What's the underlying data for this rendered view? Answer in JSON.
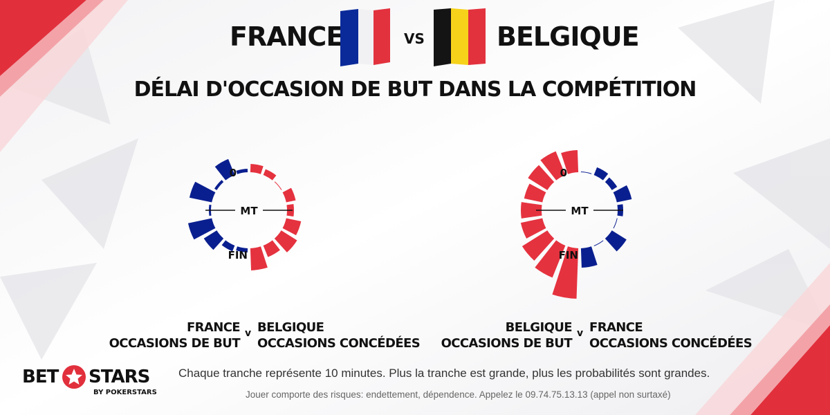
{
  "header": {
    "team_left": "FRANCE",
    "vs": "VS",
    "team_right": "BELGIQUE",
    "title": "DÉLAI D'OCCASION DE BUT DANS LA COMPÉTITION"
  },
  "colors": {
    "red": "#e5323f",
    "blue": "#0a1f8f",
    "flag_black": "#111111",
    "flag_yellow": "#f6d21b"
  },
  "radial_labels": {
    "start": "0",
    "half": "MT",
    "end": "FIN"
  },
  "captions": {
    "left": {
      "team_a": "FRANCE",
      "line_a": "OCCASIONS DE BUT",
      "v": "v",
      "team_b": "BELGIQUE",
      "line_b": "OCCASIONS CONCÉDÉES"
    },
    "right": {
      "team_a": "BELGIQUE",
      "line_a": "OCCASIONS DE BUT",
      "v": "v",
      "team_b": "FRANCE",
      "line_b": "OCCASIONS CONCÉDÉES"
    }
  },
  "footer": {
    "note": "Chaque tranche représente 10 minutes. Plus la tranche est grande, plus les probabilités sont grandes.",
    "disclaimer": "Jouer comporte des risques: endettement, dépendence. Appelez le 09.74.75.13.13 (appel non surtaxé)"
  },
  "logo": {
    "bet": "BET",
    "stars": "STARS",
    "sub": "BY POKERSTARS"
  },
  "chart_data": [
    {
      "type": "radial-bar",
      "segments": [
        "0-10",
        "10-20",
        "20-30",
        "30-40",
        "40-50",
        "50-60",
        "60-70",
        "70-80",
        "80-90"
      ],
      "series": [
        {
          "name": "FRANCE OCCASIONS DE BUT",
          "values": [
            5,
            25,
            4,
            33,
            3,
            35,
            22,
            9,
            6
          ]
        },
        {
          "name": "BELGIQUE OCCASIONS CONCÉDÉES",
          "values": [
            12,
            9,
            1,
            14,
            10,
            22,
            27,
            18,
            32
          ]
        }
      ]
    },
    {
      "type": "radial-bar",
      "segments": [
        "0-10",
        "10-20",
        "20-30",
        "30-40",
        "40-50",
        "50-60",
        "60-70",
        "70-80",
        "80-90"
      ],
      "series": [
        {
          "name": "BELGIQUE OCCASIONS DE BUT",
          "values": [
            32,
            37,
            33,
            27,
            30,
            32,
            43,
            50,
            73
          ]
        },
        {
          "name": "FRANCE OCCASIONS CONCÉDÉES",
          "values": [
            1,
            12,
            9,
            22,
            8,
            1,
            25,
            1,
            28
          ]
        }
      ]
    }
  ]
}
